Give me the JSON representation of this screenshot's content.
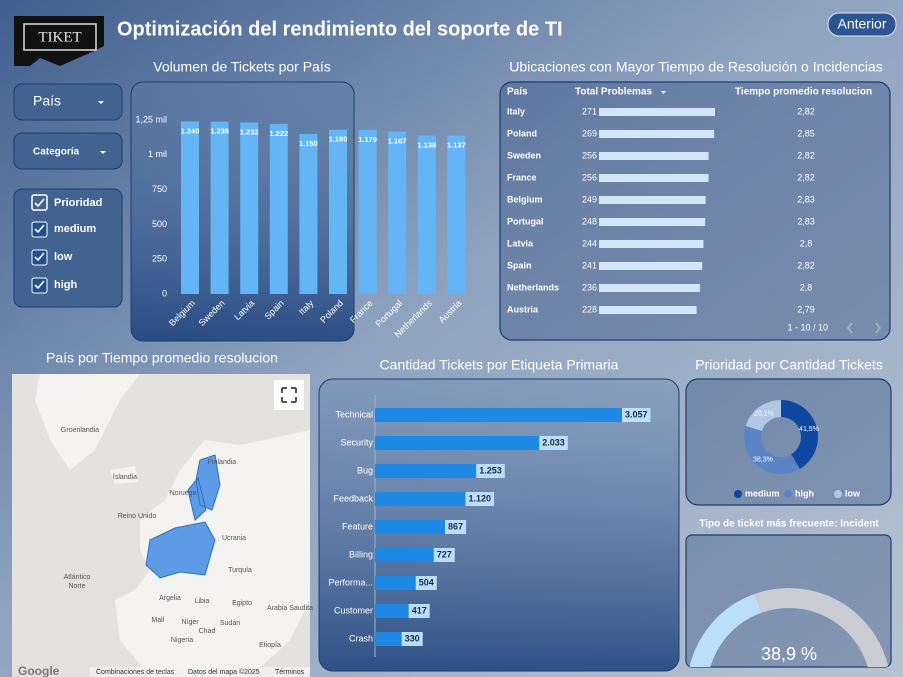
{
  "header": {
    "logo": "TIKET",
    "title": "Optimización del rendimiento del soporte de TI",
    "button": "Anterior"
  },
  "filters": {
    "country": "País",
    "category": "Categoría",
    "priority": {
      "title": "Prioridad",
      "options": [
        "medium",
        "low",
        "high"
      ]
    }
  },
  "table": {
    "title": "Ubicaciones con Mayor Tiempo de Resolución o Incidencias",
    "columns": [
      "País",
      "Total Problemas",
      "Tiempo promedio resolucion"
    ],
    "rows": [
      [
        "Italy",
        271,
        "2,82"
      ],
      [
        "Poland",
        269,
        "2,85"
      ],
      [
        "Sweden",
        256,
        "2,82"
      ],
      [
        "France",
        256,
        "2,82"
      ],
      [
        "Belgium",
        249,
        "2,83"
      ],
      [
        "Portugal",
        248,
        "2,83"
      ],
      [
        "Latvia",
        244,
        "2,8"
      ],
      [
        "Spain",
        241,
        "2,82"
      ],
      [
        "Netherlands",
        236,
        "2,8"
      ],
      [
        "Austria",
        228,
        "2,79"
      ]
    ],
    "pagination": "1 - 10 / 10"
  },
  "map": {
    "title": "País por Tiempo promedio resolucion",
    "labels": [
      "Groenlandia",
      "Islandia",
      "Finlandia",
      "Noruega",
      "Reino Unido",
      "Ucrania",
      "Turquía",
      "Argelia",
      "Libia",
      "Egipto",
      "Arabia Saudita",
      "Malí",
      "Níger",
      "Chad",
      "Sudán",
      "Nigeria",
      "Etiopía",
      "Atlántico",
      "Norte"
    ],
    "footer": [
      "Google",
      "Combinaciones de teclas",
      "Datos del mapa ©2025",
      "Términos"
    ]
  },
  "chart_data": [
    {
      "type": "bar",
      "title": "Volumen de Tickets por País",
      "categories": [
        "Belgium",
        "Sweden",
        "Latvia",
        "Spain",
        "Italy",
        "Poland",
        "France",
        "Portugal",
        "Netherlands",
        "Austria"
      ],
      "values": [
        1240,
        1238,
        1232,
        1222,
        1150,
        1180,
        1179,
        1167,
        1138,
        1137
      ],
      "value_labels": [
        "1.240",
        "1.238",
        "1.232",
        "1.222",
        "1.150",
        "1.180",
        "1.179",
        "1.167",
        "1.138",
        "1.137"
      ],
      "color": "#64b5f6",
      "ylim": [
        0,
        1250
      ],
      "yticks": [
        0,
        250,
        500,
        750,
        {
          "value": 1000,
          "label": "1 mil"
        },
        {
          "value": 1250,
          "label": "1,25 mil"
        }
      ]
    },
    {
      "type": "hbar",
      "title": "Cantidad Tickets por Etiqueta Primaria",
      "categories": [
        "Technical",
        "Security",
        "Bug",
        "Feedback",
        "Feature",
        "Billing",
        "Performa...",
        "Customer",
        "Crash"
      ],
      "values": [
        3057,
        2033,
        1253,
        1120,
        867,
        727,
        504,
        417,
        330
      ],
      "value_labels": [
        "3.057",
        "2.033",
        "1.253",
        "1.120",
        "867",
        "727",
        "504",
        "417",
        "330"
      ],
      "color": "#1e88e5"
    },
    {
      "type": "donut",
      "title": "Prioridad por Cantidad Tickets",
      "categories": [
        "medium",
        "high",
        "low"
      ],
      "values": [
        41.5,
        38.3,
        20.1
      ],
      "value_labels": [
        "41,5%",
        "38,3%",
        "20,1%"
      ],
      "colors": [
        "#0d47a1",
        "#5b84c6",
        "#b0c8e6"
      ]
    },
    {
      "type": "gauge",
      "title": "Tipo de ticket más frecuente: Incident",
      "values": [
        38.9
      ],
      "value_labels": [
        "38,9 %"
      ],
      "ylim": [
        0,
        100
      ],
      "color": "#bbdefb"
    }
  ]
}
